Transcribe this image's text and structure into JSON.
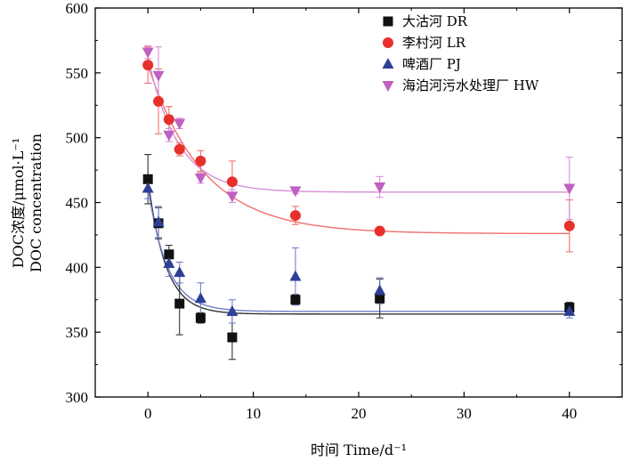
{
  "chart_data": {
    "type": "scatter",
    "title": "",
    "xlabel": "时间 Time/d⁻¹",
    "ylabel_line1": "DOC浓度/μmol·L⁻¹",
    "ylabel_line2": "DOC concentration",
    "xlim": [
      -5,
      45
    ],
    "ylim": [
      300,
      600
    ],
    "xticks": [
      0,
      10,
      20,
      30,
      40
    ],
    "xtick_labels": [
      "0",
      "10",
      "20",
      "30",
      "40"
    ],
    "yticks": [
      300,
      350,
      400,
      450,
      500,
      550,
      600
    ],
    "ytick_labels": [
      "300",
      "350",
      "400",
      "450",
      "500",
      "550",
      "600"
    ],
    "fit_x_range": [
      0,
      40
    ],
    "legend_position": "top-right",
    "series": [
      {
        "name": "大沽河 DR",
        "marker": "square",
        "color": "#111111",
        "line_color": "#333333",
        "x": [
          0,
          1,
          2,
          3,
          5,
          8,
          14,
          22,
          40
        ],
        "y": [
          468,
          434,
          410,
          372,
          361,
          346,
          375,
          376,
          369
        ],
        "err": [
          19,
          12,
          7,
          24,
          4,
          17,
          4,
          15,
          4
        ],
        "fit": {
          "a": 364,
          "b": 104,
          "k": 0.6
        }
      },
      {
        "name": "李村河 LR",
        "marker": "circle",
        "color": "#e8302a",
        "line_color": "#f07070",
        "x": [
          0,
          1,
          2,
          3,
          5,
          8,
          14,
          22,
          40
        ],
        "y": [
          556,
          528,
          514,
          491,
          482,
          466,
          440,
          428,
          432
        ],
        "err": [
          14,
          25,
          10,
          5,
          8,
          16,
          7,
          0,
          20
        ],
        "fit": {
          "a": 426,
          "b": 130,
          "k": 0.19
        }
      },
      {
        "name": "啤酒厂 PJ",
        "marker": "triangle-up",
        "color": "#2e3f96",
        "line_color": "#7080c8",
        "x": [
          0,
          1,
          2,
          3,
          5,
          8,
          14,
          22,
          40
        ],
        "y": [
          461,
          435,
          403,
          396,
          376,
          366,
          393,
          382,
          366
        ],
        "err": [
          8,
          12,
          10,
          8,
          12,
          9,
          22,
          10,
          5
        ],
        "fit": {
          "a": 366,
          "b": 96,
          "k": 0.55
        }
      },
      {
        "name": "海泊河污水处理厂 HW",
        "marker": "triangle-down",
        "color": "#c060c0",
        "line_color": "#d890d8",
        "x": [
          0,
          1,
          2,
          3,
          5,
          8,
          14,
          22,
          40
        ],
        "y": [
          566,
          548,
          502,
          511,
          469,
          455,
          459,
          462,
          461
        ],
        "err": [
          5,
          22,
          5,
          4,
          4,
          5,
          2,
          8,
          24
        ],
        "fit": {
          "a": 458,
          "b": 104,
          "k": 0.35
        }
      }
    ]
  }
}
